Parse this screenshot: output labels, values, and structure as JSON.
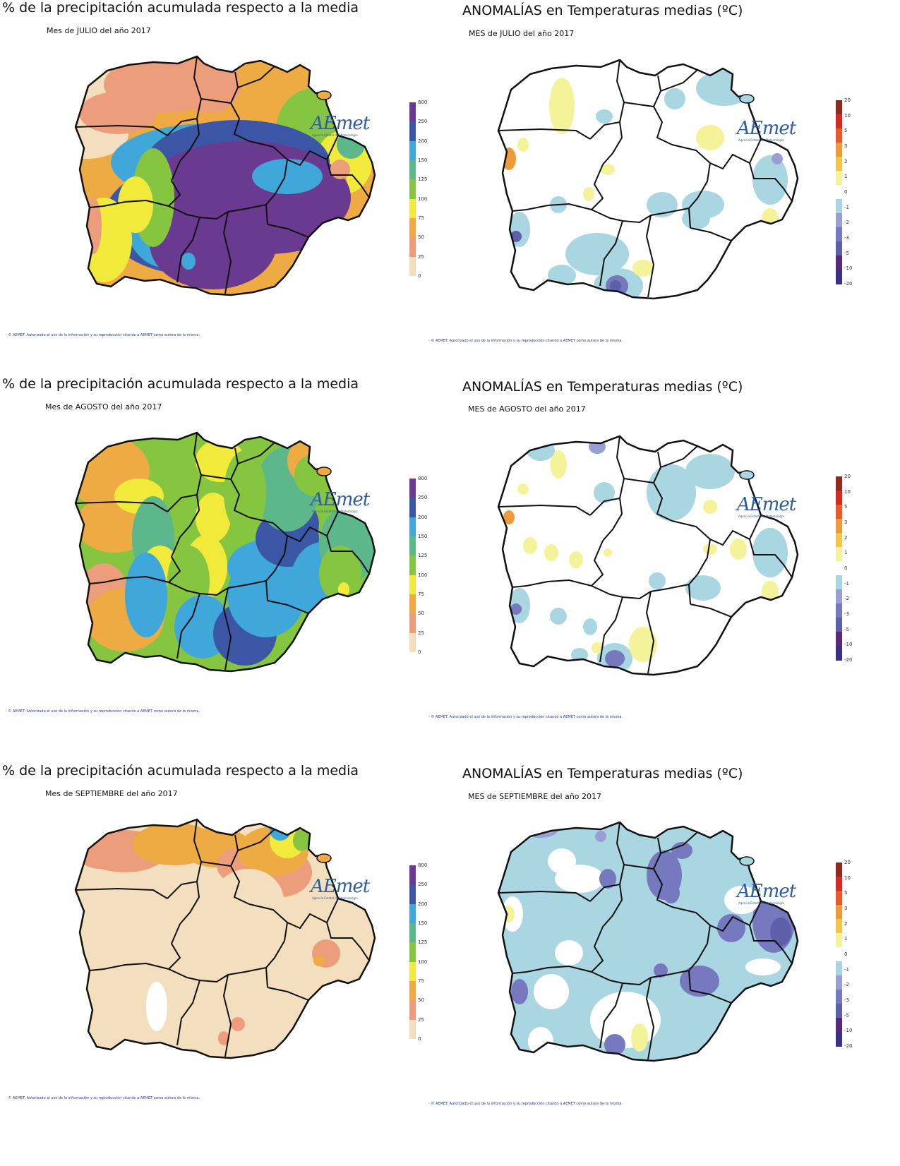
{
  "colors": {
    "precip_scale": [
      "#f3dfbd",
      "#ec9e7c",
      "#eeab44",
      "#f2ea3b",
      "#86c540",
      "#5cb88a",
      "#3fa7da",
      "#3c56a6",
      "#6a3a90"
    ],
    "anom_scale": [
      "#3b2f86",
      "#5a2a7a",
      "#5d5fa8",
      "#7679bd",
      "#9a9fd3",
      "#aad6e2",
      "#ffffff",
      "#f5f39a",
      "#f3c54b",
      "#ec9a3a",
      "#e95a2b",
      "#d52a22",
      "#8e2a1e"
    ],
    "border": "#111111"
  },
  "logo": {
    "text": "AEmet",
    "subtext": "Agencia Estatal de Meteorología"
  },
  "precip_legend_labels": [
    "800",
    "250",
    "200",
    "150",
    "125",
    "100",
    "75",
    "50",
    "25",
    "0"
  ],
  "anom_legend_labels": [
    "20",
    "10",
    "5",
    "3",
    "2",
    "1",
    "0",
    "-1",
    "-2",
    "-3",
    "-5",
    "-10",
    "-20"
  ],
  "footer_text": "- © AEMET. Autorizado el uso de la información y su reproducción citando a AEMET como autora de la misma.",
  "rows": [
    {
      "month": "JULIO",
      "precip": {
        "title": "% de la precipitación acumulada respecto a la media",
        "subtitle": "Mes de JULIO del año 2017"
      },
      "anom": {
        "title": "ANOMALÍAS en Temperaturas medias (ºC)",
        "subtitle": "MES de JULIO del año 2017"
      }
    },
    {
      "month": "AGOSTO",
      "precip": {
        "title": "% de la precipitación acumulada respecto a la media",
        "subtitle": "Mes de AGOSTO del año 2017"
      },
      "anom": {
        "title": "ANOMALÍAS en Temperaturas medias (ºC)",
        "subtitle": "MES de AGOSTO del año 2017"
      }
    },
    {
      "month": "SEPTIEMBRE",
      "precip": {
        "title": "% de la precipitación acumulada respecto a la media",
        "subtitle": "Mes de SEPTIEMBRE del año 2017"
      },
      "anom": {
        "title": "ANOMALÍAS en Temperaturas medias (ºC)",
        "subtitle": "MES de SEPTIEMBRE del año 2017"
      }
    }
  ]
}
